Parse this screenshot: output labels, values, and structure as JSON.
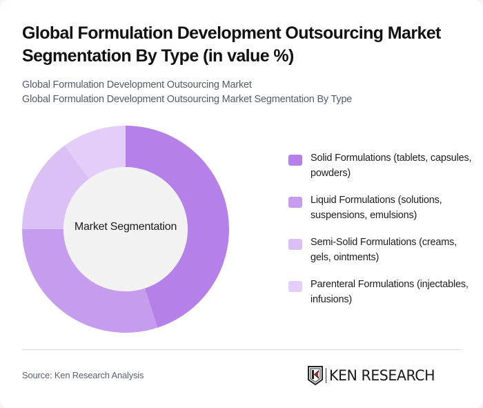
{
  "header": {
    "title": "Global Formulation Development Outsourcing Market Segmentation By Type (in value %)",
    "subtitle_line1": "Global Formulation Development Outsourcing Market",
    "subtitle_line2": "Global Formulation Development Outsourcing Market Segmentation By Type"
  },
  "chart": {
    "center_label": "Market Segmentation"
  },
  "legend": {
    "items": [
      {
        "label": "Solid Formulations (tablets, capsules, powders)",
        "color": "#b580e8"
      },
      {
        "label": "Liquid Formulations (solutions, suspensions, emulsions)",
        "color": "#c69cee"
      },
      {
        "label": "Semi-Solid Formulations (creams, gels, ointments)",
        "color": "#dbc0f6"
      },
      {
        "label": "Parenteral Formulations (injectables, infusions)",
        "color": "#e4cdf8"
      }
    ]
  },
  "footer": {
    "source": "Source: Ken Research Analysis",
    "logo_text": "KEN RESEARCH"
  },
  "chart_data": {
    "type": "pie",
    "variant": "donut",
    "title": "Global Formulation Development Outsourcing Market Segmentation By Type (in value %)",
    "center_label": "Market Segmentation",
    "categories": [
      "Solid Formulations (tablets, capsules, powders)",
      "Liquid Formulations (solutions, suspensions, emulsions)",
      "Semi-Solid Formulations (creams, gels, ointments)",
      "Parenteral Formulations (injectables, infusions)"
    ],
    "values": [
      45,
      30,
      15,
      10
    ],
    "colors": [
      "#b580e8",
      "#c69cee",
      "#dbc0f6",
      "#e4cdf8"
    ],
    "legend_position": "right",
    "start_angle": "12 o'clock, clockwise"
  }
}
